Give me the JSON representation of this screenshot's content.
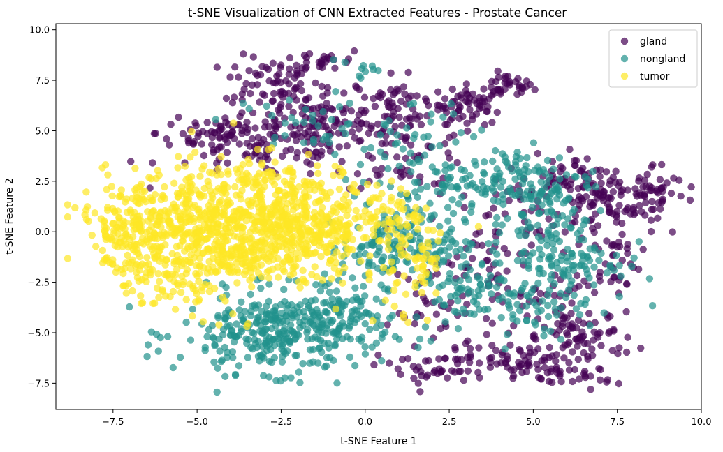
{
  "chart_data": {
    "type": "scatter",
    "title": "t-SNE Visualization of CNN Extracted Features - Prostate Cancer",
    "xlabel": "t-SNE Feature 1",
    "ylabel": "t-SNE Feature 2",
    "xlim": [
      -9.2,
      10.0
    ],
    "ylim": [
      -8.8,
      10.3
    ],
    "xticks": [
      -7.5,
      -5.0,
      -2.5,
      0.0,
      2.5,
      5.0,
      7.5,
      10.0
    ],
    "xtick_labels": [
      "−7.5",
      "−5.0",
      "−2.5",
      "0.0",
      "2.5",
      "5.0",
      "7.5",
      "10.0"
    ],
    "yticks": [
      -7.5,
      -5.0,
      -2.5,
      0.0,
      2.5,
      5.0,
      7.5,
      10.0
    ],
    "ytick_labels": [
      "−7.5",
      "−5.0",
      "−2.5",
      "0.0",
      "2.5",
      "5.0",
      "7.5",
      "10.0"
    ],
    "grid": false,
    "legend_position": "top-right",
    "series": [
      {
        "name": "gland",
        "color": "#440154",
        "clusters": [
          {
            "cx": 3.2,
            "cy": 6.3,
            "sx": 0.5,
            "sy": 0.5,
            "n": 60
          },
          {
            "cx": 4.2,
            "cy": 7.2,
            "sx": 0.4,
            "sy": 0.3,
            "n": 30
          },
          {
            "cx": -2.8,
            "cy": 7.5,
            "sx": 0.7,
            "sy": 0.6,
            "n": 55
          },
          {
            "cx": -1.2,
            "cy": 8.5,
            "sx": 0.6,
            "sy": 0.3,
            "n": 25
          },
          {
            "cx": 0.8,
            "cy": 6.5,
            "sx": 0.6,
            "sy": 0.6,
            "n": 40
          },
          {
            "cx": -1.5,
            "cy": 5.5,
            "sx": 1.4,
            "sy": 0.7,
            "n": 120
          },
          {
            "cx": -4.8,
            "cy": 4.9,
            "sx": 0.7,
            "sy": 0.5,
            "n": 30
          },
          {
            "cx": -3.0,
            "cy": 4.2,
            "sx": 1.5,
            "sy": 0.8,
            "n": 100
          },
          {
            "cx": 1.2,
            "cy": 4.2,
            "sx": 1.0,
            "sy": 1.0,
            "n": 70
          },
          {
            "cx": 7.0,
            "cy": 1.5,
            "sx": 0.9,
            "sy": 0.9,
            "n": 110
          },
          {
            "cx": 8.6,
            "cy": 2.0,
            "sx": 0.5,
            "sy": 0.7,
            "n": 40
          },
          {
            "cx": 5.8,
            "cy": 3.0,
            "sx": 0.5,
            "sy": 0.6,
            "n": 30
          },
          {
            "cx": 7.4,
            "cy": -1.5,
            "sx": 0.4,
            "sy": 0.8,
            "n": 35
          },
          {
            "cx": 4.5,
            "cy": -6.5,
            "sx": 0.9,
            "sy": 0.5,
            "n": 80
          },
          {
            "cx": 2.0,
            "cy": -6.8,
            "sx": 0.8,
            "sy": 0.5,
            "n": 40
          },
          {
            "cx": 6.6,
            "cy": -5.2,
            "sx": 0.7,
            "sy": 0.6,
            "n": 60
          },
          {
            "cx": 5.5,
            "cy": -3.5,
            "sx": 0.8,
            "sy": 0.8,
            "n": 40
          },
          {
            "cx": 3.5,
            "cy": -1.5,
            "sx": 0.8,
            "sy": 1.5,
            "n": 50
          },
          {
            "cx": 2.0,
            "cy": -4.0,
            "sx": 0.6,
            "sy": 1.2,
            "n": 35
          },
          {
            "cx": 5.0,
            "cy": 0.5,
            "sx": 0.8,
            "sy": 1.0,
            "n": 30
          },
          {
            "cx": 6.5,
            "cy": -7.2,
            "sx": 0.4,
            "sy": 0.3,
            "n": 15
          }
        ]
      },
      {
        "name": "nongland",
        "color": "#21918c",
        "clusters": [
          {
            "cx": -2.5,
            "cy": -5.0,
            "sx": 1.5,
            "sy": 1.0,
            "n": 330
          },
          {
            "cx": -1.0,
            "cy": -3.8,
            "sx": 0.8,
            "sy": 0.8,
            "n": 70
          },
          {
            "cx": 0.5,
            "cy": -0.8,
            "sx": 0.6,
            "sy": 0.8,
            "n": 90
          },
          {
            "cx": 2.0,
            "cy": -0.5,
            "sx": 0.8,
            "sy": 1.0,
            "n": 60
          },
          {
            "cx": 4.5,
            "cy": 2.5,
            "sx": 1.2,
            "sy": 0.9,
            "n": 130
          },
          {
            "cx": 6.0,
            "cy": -1.5,
            "sx": 0.9,
            "sy": 1.0,
            "n": 110
          },
          {
            "cx": 3.0,
            "cy": -2.8,
            "sx": 0.8,
            "sy": 0.8,
            "n": 70
          },
          {
            "cx": 5.0,
            "cy": -4.0,
            "sx": 0.8,
            "sy": 0.6,
            "n": 40
          },
          {
            "cx": 5.5,
            "cy": 0.8,
            "sx": 0.8,
            "sy": 0.8,
            "n": 50
          },
          {
            "cx": -1.5,
            "cy": 5.3,
            "sx": 1.2,
            "sy": 0.8,
            "n": 40
          },
          {
            "cx": 1.8,
            "cy": 5.0,
            "sx": 0.8,
            "sy": 0.8,
            "n": 20
          },
          {
            "cx": 1.5,
            "cy": 2.5,
            "sx": 1.0,
            "sy": 0.8,
            "n": 50
          },
          {
            "cx": -0.2,
            "cy": 8.0,
            "sx": 0.5,
            "sy": 0.4,
            "n": 10
          }
        ]
      },
      {
        "name": "tumor",
        "color": "#fde725",
        "clusters": [
          {
            "cx": -4.5,
            "cy": 0.0,
            "sx": 1.6,
            "sy": 1.5,
            "n": 700
          },
          {
            "cx": -1.8,
            "cy": 0.2,
            "sx": 1.1,
            "sy": 1.1,
            "n": 300
          },
          {
            "cx": -7.0,
            "cy": 0.2,
            "sx": 0.8,
            "sy": 1.2,
            "n": 100
          },
          {
            "cx": 0.8,
            "cy": 0.8,
            "sx": 0.6,
            "sy": 0.6,
            "n": 60
          },
          {
            "cx": 1.5,
            "cy": -1.2,
            "sx": 0.5,
            "sy": 1.0,
            "n": 40
          },
          {
            "cx": -3.0,
            "cy": 2.5,
            "sx": 1.2,
            "sy": 0.6,
            "n": 80
          },
          {
            "cx": -6.0,
            "cy": -2.5,
            "sx": 0.8,
            "sy": 0.8,
            "n": 50
          },
          {
            "cx": 1.2,
            "cy": -3.0,
            "sx": 0.5,
            "sy": 0.8,
            "n": 20
          }
        ]
      }
    ]
  }
}
